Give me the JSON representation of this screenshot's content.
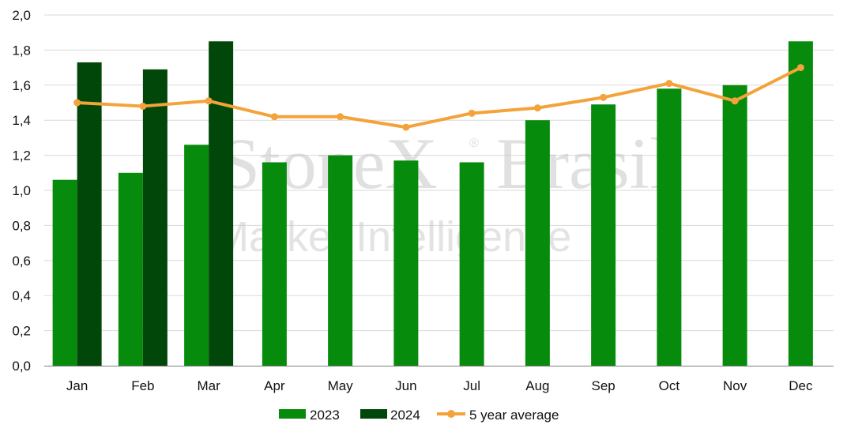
{
  "watermark": {
    "brand": "StoneX",
    "brand_suffix": "Brasil",
    "registered": "®",
    "subtitle": "Market Intelligence"
  },
  "colors": {
    "s2023": "#078b0c",
    "s2024": "#02470a",
    "avg": "#f3a33a",
    "grid": "#d9d9d9",
    "axis": "#7f7f7f"
  },
  "chart_data": {
    "type": "bar",
    "categories": [
      "Jan",
      "Feb",
      "Mar",
      "Apr",
      "May",
      "Jun",
      "Jul",
      "Aug",
      "Sep",
      "Oct",
      "Nov",
      "Dec"
    ],
    "series": [
      {
        "name": "2023",
        "type": "bar",
        "values": [
          1.06,
          1.1,
          1.26,
          1.16,
          1.2,
          1.17,
          1.16,
          1.4,
          1.49,
          1.58,
          1.6,
          1.85
        ]
      },
      {
        "name": "2024",
        "type": "bar",
        "values": [
          1.73,
          1.69,
          1.85,
          null,
          null,
          null,
          null,
          null,
          null,
          null,
          null,
          null
        ]
      },
      {
        "name": "5 year average",
        "type": "line",
        "values": [
          1.5,
          1.48,
          1.51,
          1.42,
          1.42,
          1.36,
          1.44,
          1.47,
          1.53,
          1.61,
          1.51,
          1.7
        ]
      }
    ],
    "y_ticks": [
      "0,0",
      "0,2",
      "0,4",
      "0,6",
      "0,8",
      "1,0",
      "1,2",
      "1,4",
      "1,6",
      "1,8",
      "2,0"
    ],
    "ylim": [
      0,
      2.0
    ],
    "grid": true,
    "legend_position": "bottom-center",
    "title": "",
    "xlabel": "",
    "ylabel": ""
  }
}
